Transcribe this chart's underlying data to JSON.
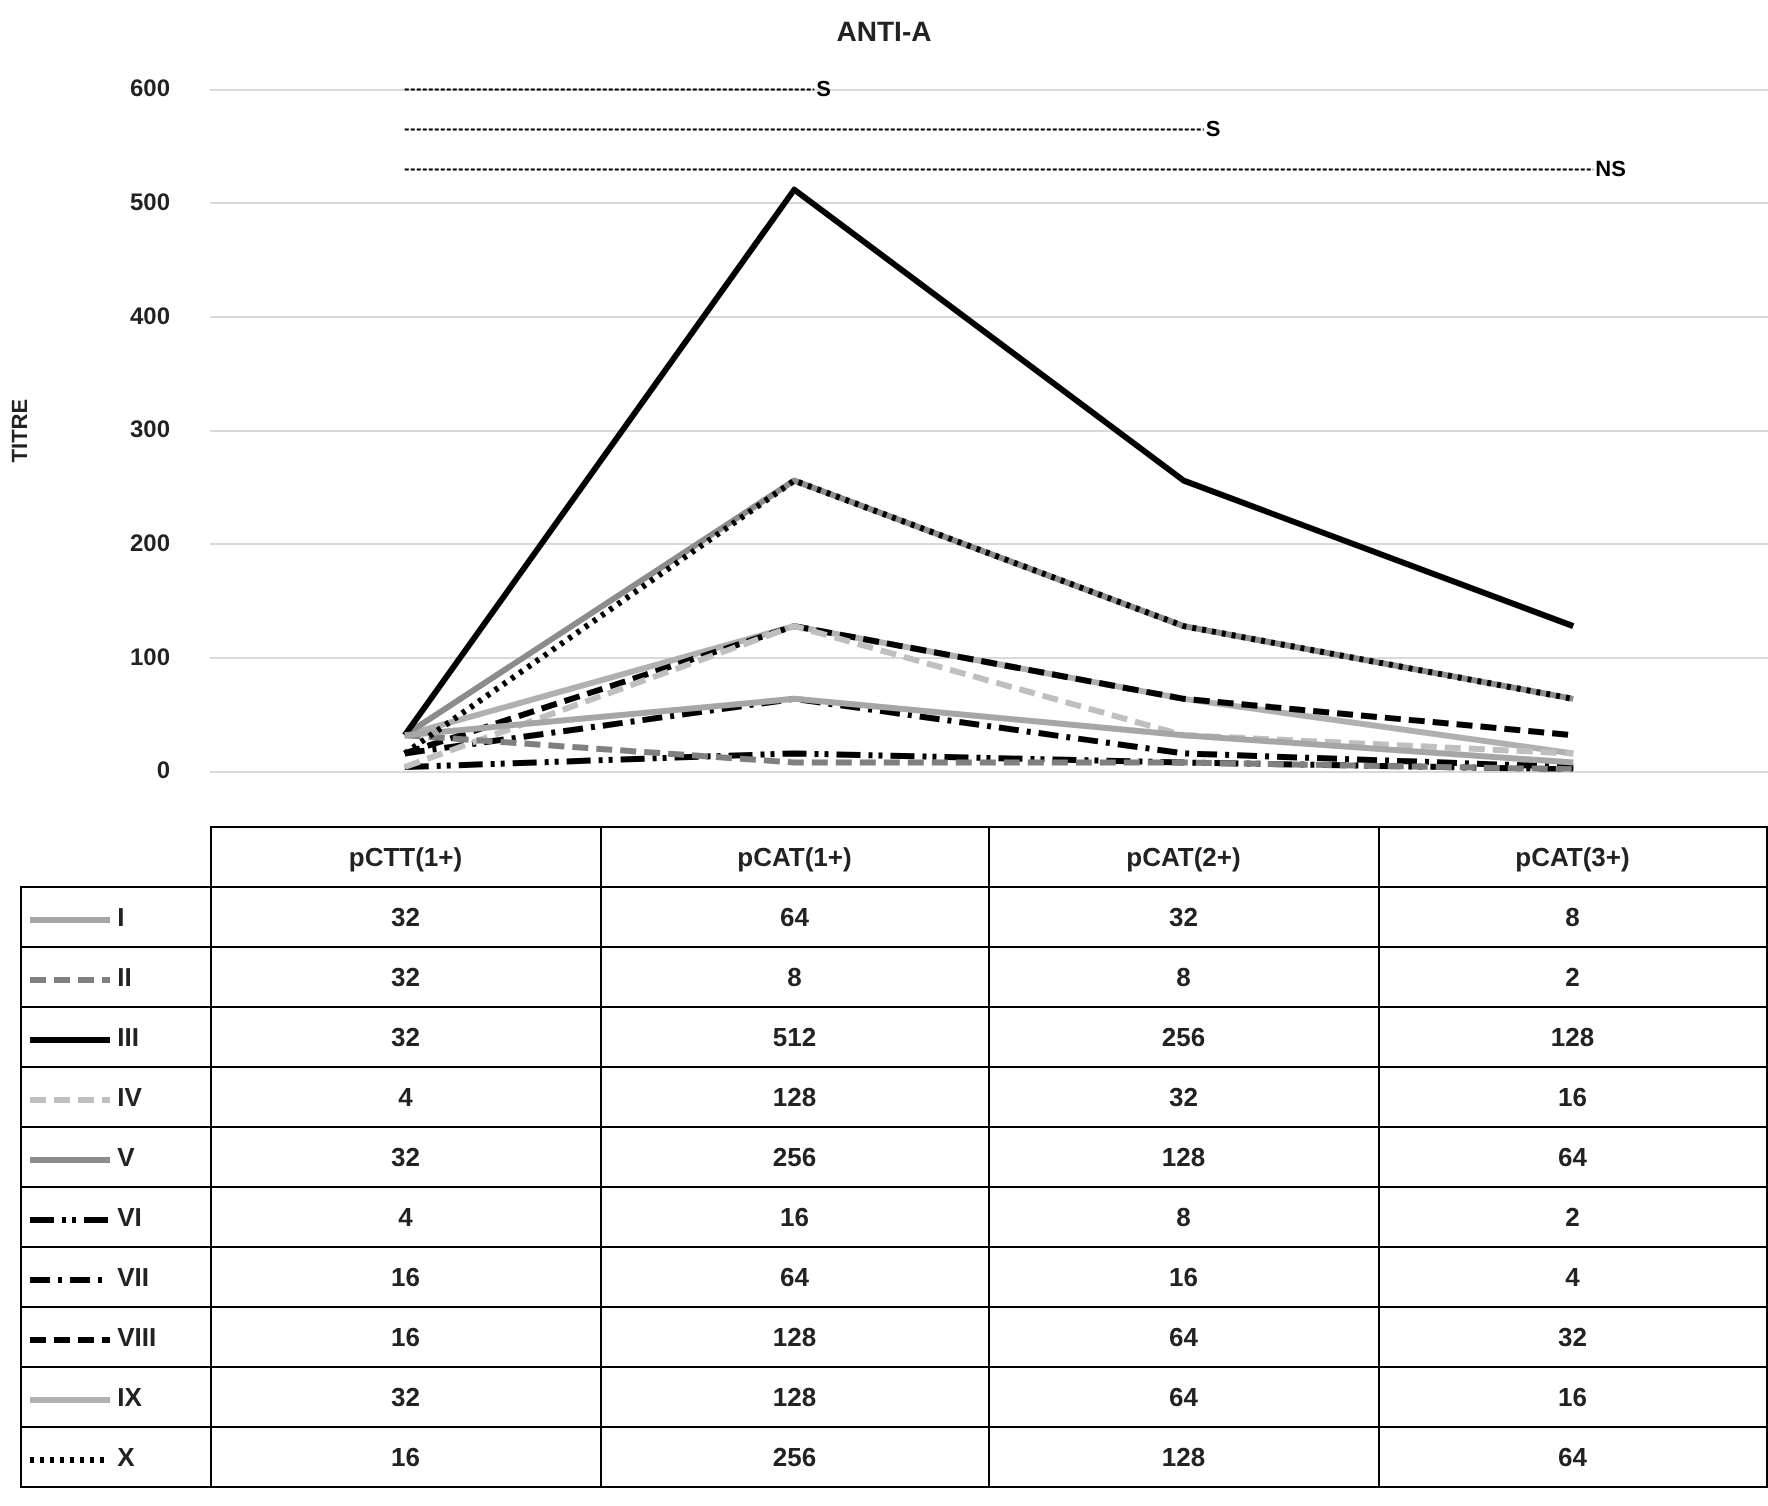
{
  "chart_data": {
    "type": "line",
    "title": "ANTI-A",
    "ylabel": "TITRE",
    "categories": [
      "pCTT(1+)",
      "pCAT(1+)",
      "pCAT(2+)",
      "pCAT(3+)"
    ],
    "series": [
      {
        "name": "I",
        "color": "#a6a6a6",
        "line_style": "solid",
        "values": [
          32,
          64,
          32,
          8
        ]
      },
      {
        "name": "II",
        "color": "#808080",
        "line_style": "dashed",
        "values": [
          32,
          8,
          8,
          2
        ]
      },
      {
        "name": "III",
        "color": "#000000",
        "line_style": "solid",
        "values": [
          32,
          512,
          256,
          128
        ]
      },
      {
        "name": "IV",
        "color": "#bfbfbf",
        "line_style": "dashed",
        "values": [
          4,
          128,
          32,
          16
        ]
      },
      {
        "name": "V",
        "color": "#8c8c8c",
        "line_style": "solid",
        "values": [
          32,
          256,
          128,
          64
        ]
      },
      {
        "name": "VI",
        "color": "#000000",
        "line_style": "dashdotdot",
        "values": [
          4,
          16,
          8,
          2
        ]
      },
      {
        "name": "VII",
        "color": "#000000",
        "line_style": "dashdot",
        "values": [
          16,
          64,
          16,
          4
        ]
      },
      {
        "name": "VIII",
        "color": "#000000",
        "line_style": "dashed",
        "values": [
          16,
          128,
          64,
          32
        ]
      },
      {
        "name": "IX",
        "color": "#b0b0b0",
        "line_style": "solid",
        "values": [
          32,
          128,
          64,
          16
        ]
      },
      {
        "name": "X",
        "color": "#000000",
        "line_style": "dotted",
        "values": [
          16,
          256,
          128,
          64
        ]
      }
    ],
    "ylim": [
      0,
      600
    ],
    "yticks": [
      0,
      100,
      200,
      300,
      400,
      500,
      600
    ],
    "grid": "y",
    "tick_labels": "y",
    "legend": "bottom",
    "data_labels": true,
    "marker": "none",
    "annotations": [
      "S",
      "S",
      "NS"
    ]
  }
}
